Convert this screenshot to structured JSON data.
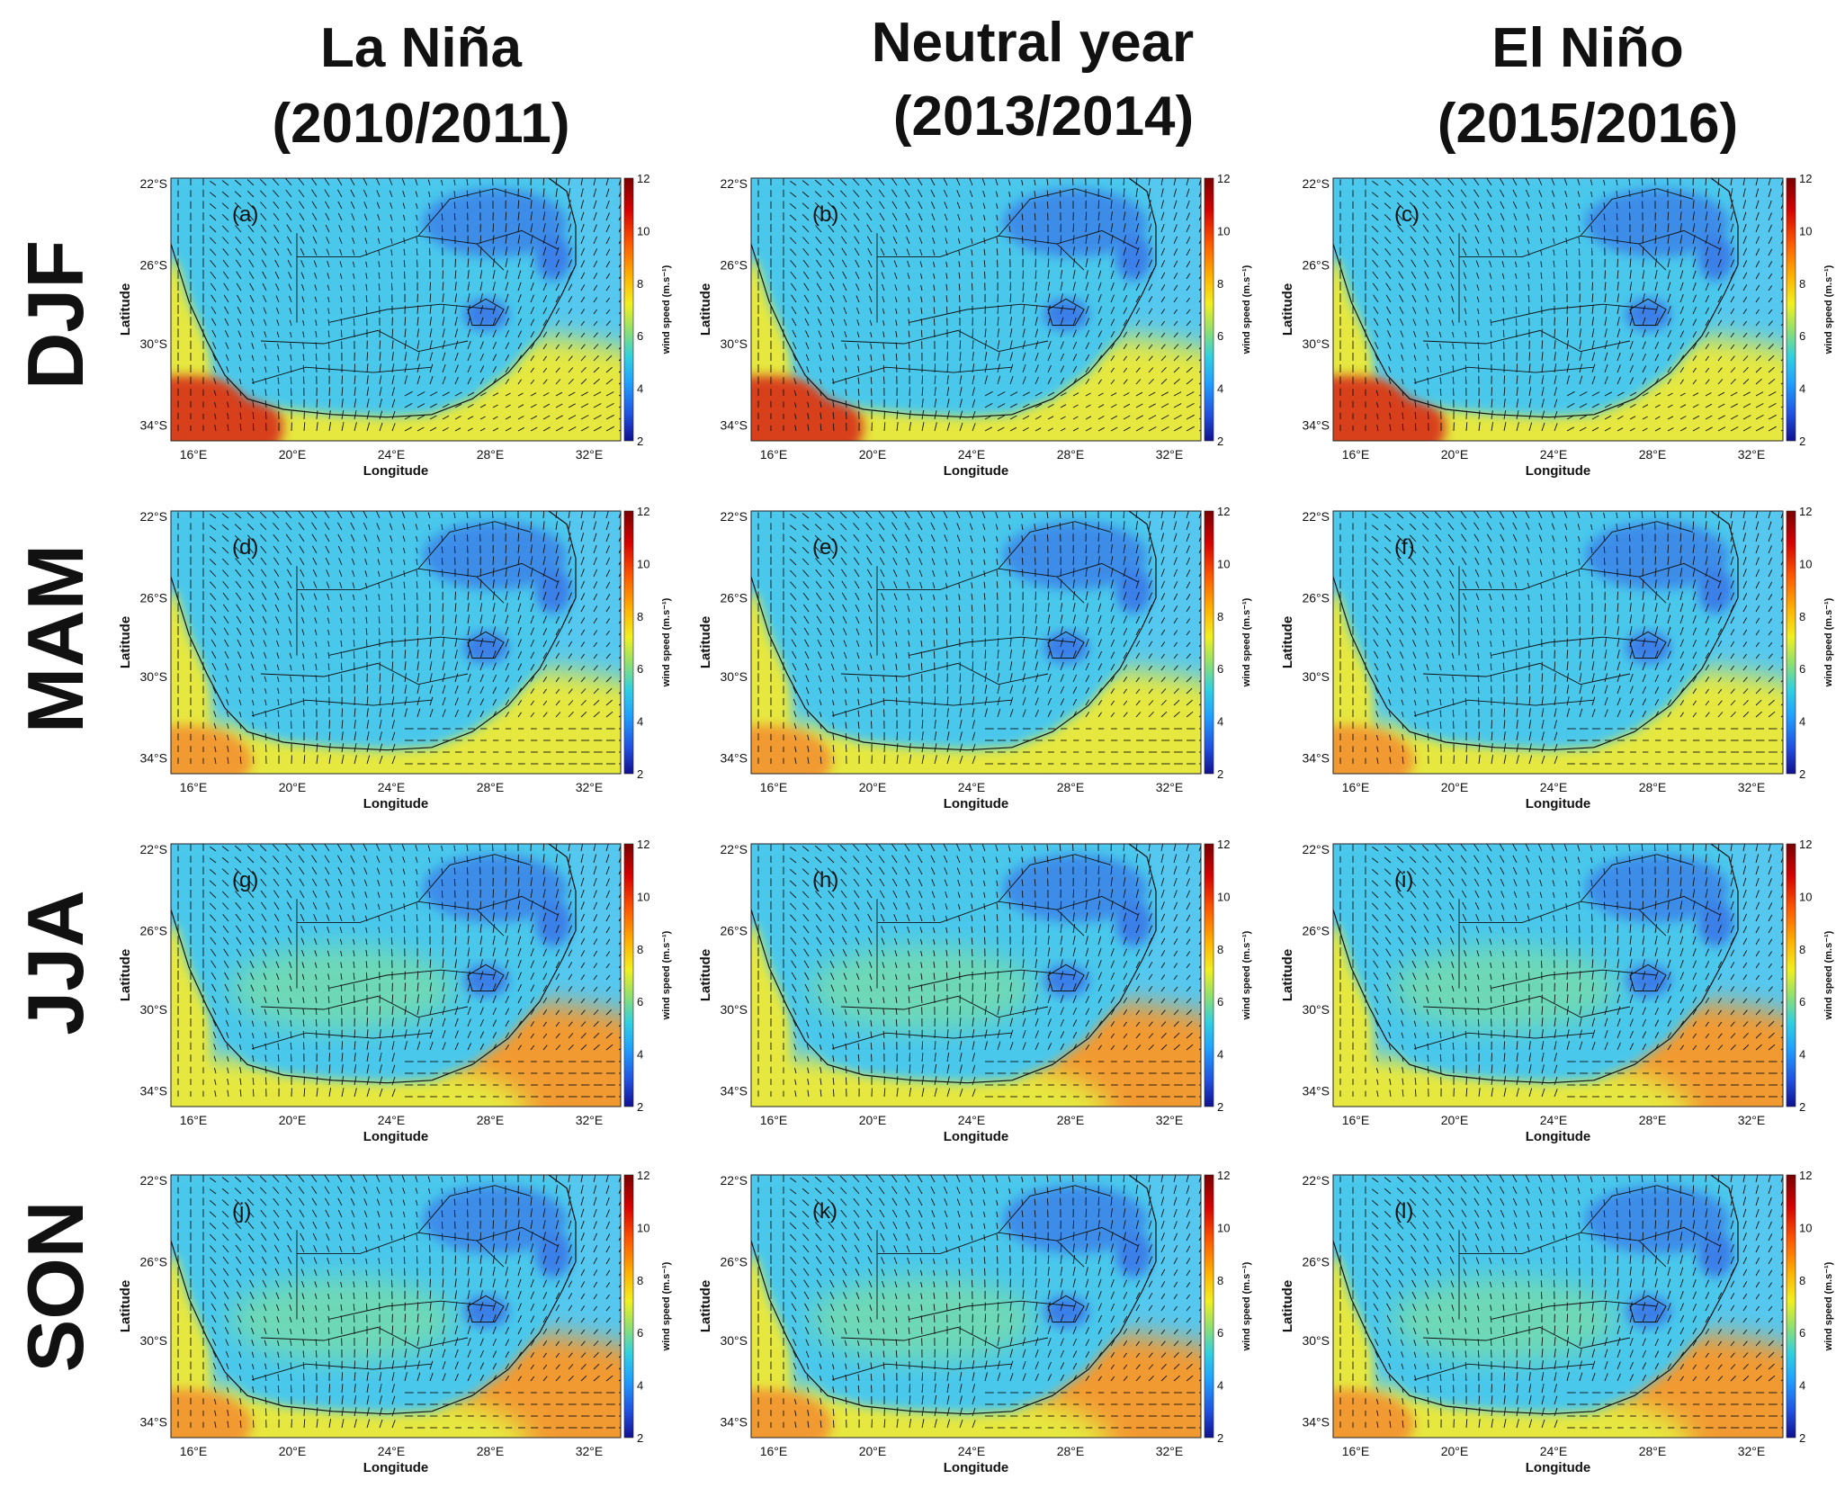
{
  "columns": [
    {
      "line1": "La Niña",
      "line2": "(2010/2011)"
    },
    {
      "line1": "Neutral year",
      "line2": "(2013/2014)"
    },
    {
      "line1": "El Niño",
      "line2": "(2015/2016)"
    }
  ],
  "rows": [
    "DJF",
    "MAM",
    "JJA",
    "SON"
  ],
  "panel_labels": [
    "(a)",
    "(b)",
    "(c)",
    "(d)",
    "(e)",
    "(f)",
    "(g)",
    "(h)",
    "(i)",
    "(j)",
    "(k)",
    "(l)"
  ],
  "axes": {
    "xlabel": "Longitude",
    "ylabel": "Latitude",
    "x_ticks": [
      "16°E",
      "20°E",
      "24°E",
      "28°E",
      "32°E"
    ],
    "y_ticks": [
      "22°S",
      "26°S",
      "30°S",
      "34°S"
    ],
    "lon_range": [
      15,
      34
    ],
    "lat_range": [
      -35,
      -22
    ]
  },
  "colorbar": {
    "label": "wind speed (m.s⁻¹)",
    "ticks": [
      "12",
      "10",
      "8",
      "6",
      "4",
      "2"
    ],
    "range": [
      2,
      12
    ],
    "colors": [
      "#7a0000",
      "#d40000",
      "#ff5a00",
      "#ffb000",
      "#f0f020",
      "#8fe070",
      "#30d0e0",
      "#20a0ff",
      "#2050e0",
      "#101090"
    ]
  },
  "field_colors": {
    "land_low": "#3a7fe8",
    "land": "#48c8ec",
    "land_high": "#7fe0a0",
    "ocean_calm": "#56c8f0",
    "ocean_mid": "#e6e840",
    "ocean_high": "#f29a30",
    "jet": "#d8401c"
  }
}
